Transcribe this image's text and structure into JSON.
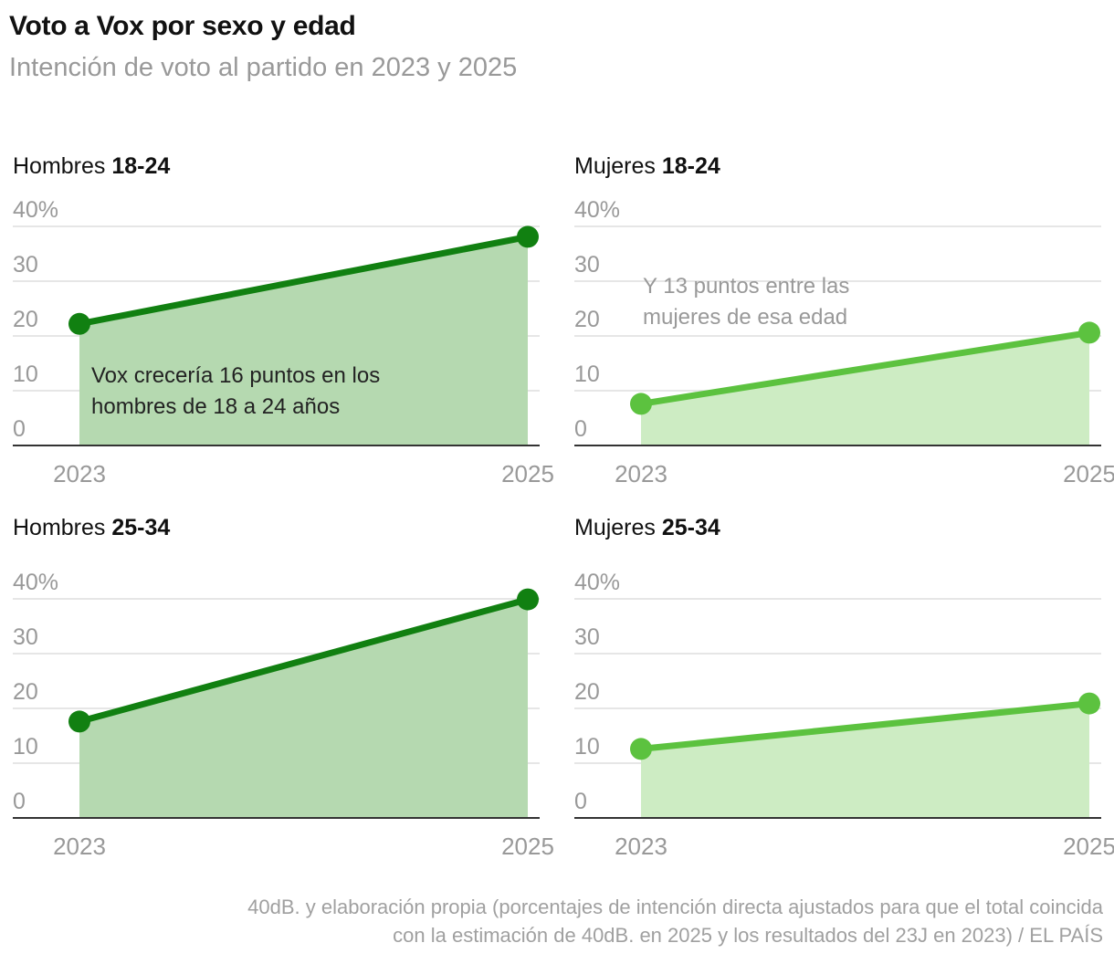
{
  "title": "Voto a Vox por sexo y edad",
  "subtitle": "Intención de voto al partido en 2023 y 2025",
  "source": [
    "40dB. y elaboración propia (porcentajes de intención directa ajustados para que el total coincida",
    "con la estimación de 40dB. en 2025 y los resultados del 23J en 2023) / EL PAÍS"
  ],
  "colors": {
    "men_line": "#118011",
    "men_fill": "#b5d9b0",
    "women_line": "#5cc23f",
    "women_fill": "#cdecc3",
    "grid": "#dddddd",
    "axis": "#333333",
    "tick": "#999999"
  },
  "chart_data": [
    {
      "type": "area",
      "group": "Hombres",
      "age": "18-24",
      "x": [
        "2023",
        "2025"
      ],
      "values": [
        22.2,
        38.1
      ],
      "ylim": [
        0,
        40
      ],
      "yticks": [
        "0",
        "10",
        "20",
        "30",
        "40%"
      ],
      "annotation": [
        "Vox crecería 16 puntos en los",
        "hombres de 18 a 24 años"
      ]
    },
    {
      "type": "area",
      "group": "Mujeres",
      "age": "18-24",
      "x": [
        "2023",
        "2025"
      ],
      "values": [
        7.6,
        20.6
      ],
      "ylim": [
        0,
        40
      ],
      "yticks": [
        "0",
        "10",
        "20",
        "30",
        "40%"
      ],
      "annotation": [
        "Y 13 puntos entre las",
        "mujeres de esa edad"
      ]
    },
    {
      "type": "area",
      "group": "Hombres",
      "age": "25-34",
      "x": [
        "2023",
        "2025"
      ],
      "values": [
        17.6,
        39.9
      ],
      "ylim": [
        0,
        40
      ],
      "yticks": [
        "0",
        "10",
        "20",
        "30",
        "40%"
      ],
      "annotation": []
    },
    {
      "type": "area",
      "group": "Mujeres",
      "age": "25-34",
      "x": [
        "2023",
        "2025"
      ],
      "values": [
        12.6,
        20.9
      ],
      "ylim": [
        0,
        40
      ],
      "yticks": [
        "0",
        "10",
        "20",
        "30",
        "40%"
      ],
      "annotation": []
    }
  ]
}
